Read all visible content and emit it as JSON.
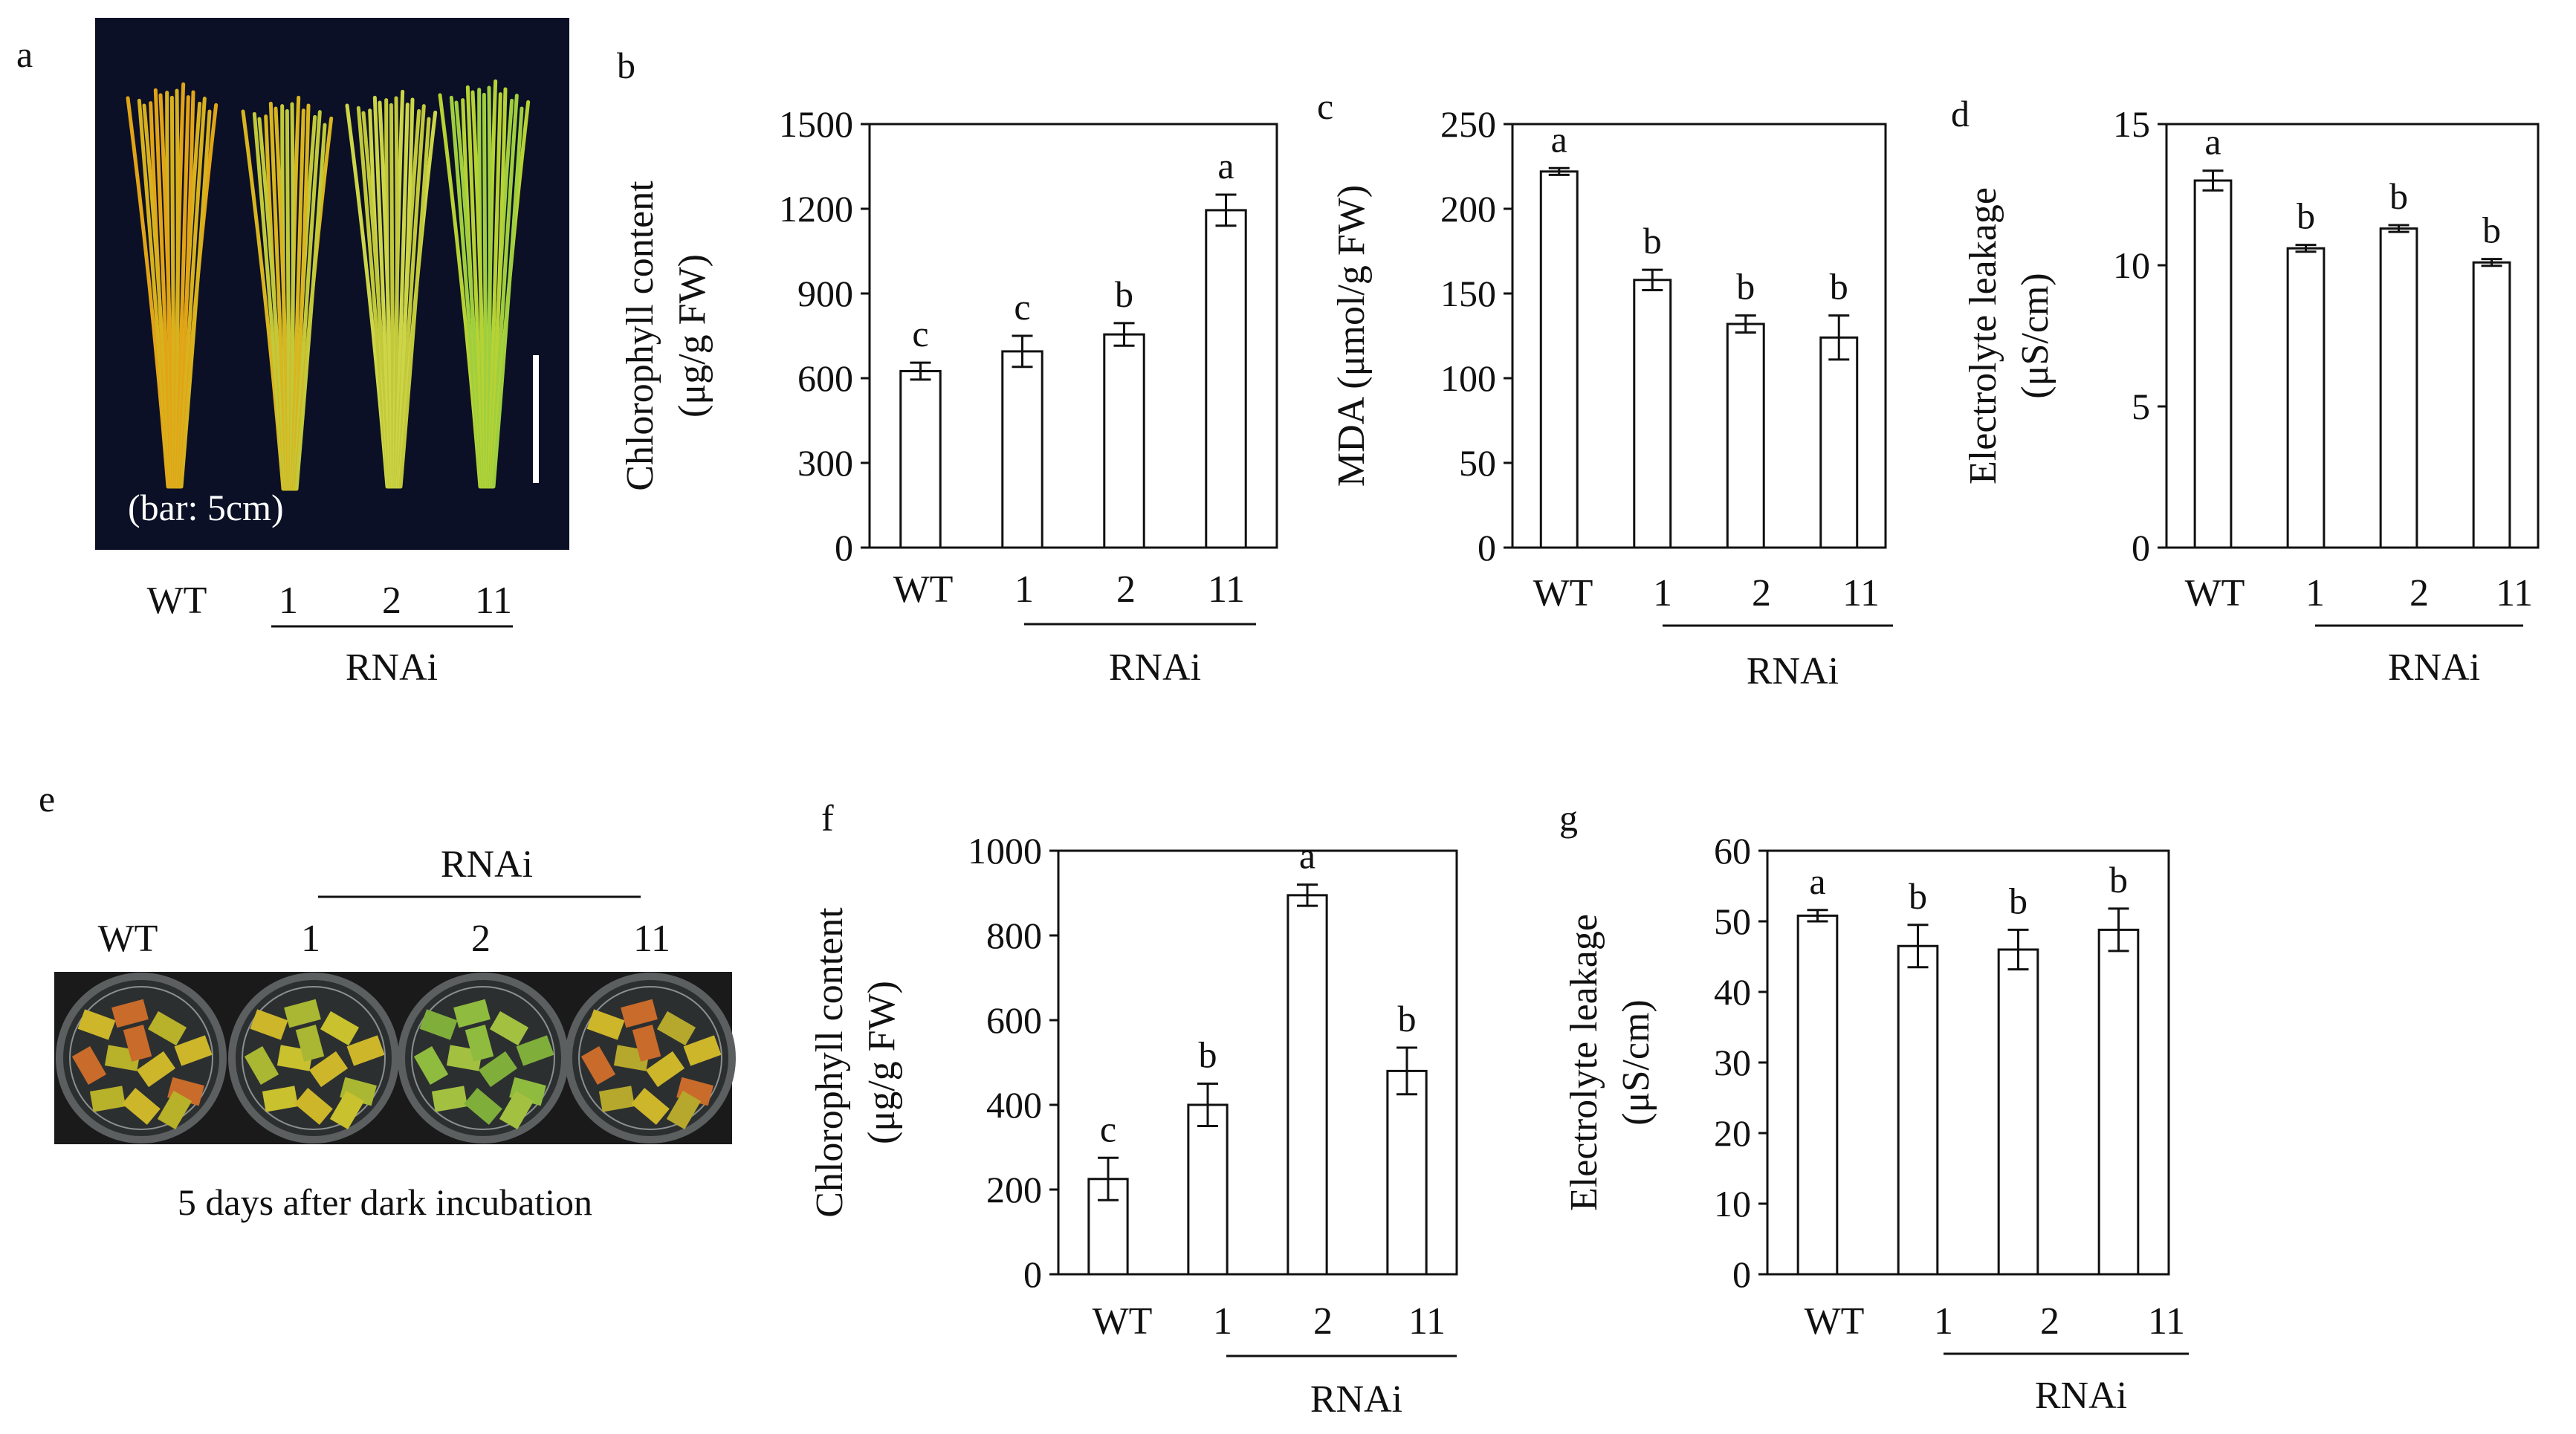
{
  "panel_letters": {
    "a": "a",
    "b": "b",
    "c": "c",
    "d": "d",
    "e": "e",
    "f": "f",
    "g": "g"
  },
  "photo_a": {
    "scale_label": "(bar: 5cm)",
    "labels": [
      "WT",
      "1",
      "2",
      "11"
    ],
    "group_label": "RNAi",
    "colors": {
      "background": "#0b1026",
      "yellow": "#d8b21e",
      "yellow_green": "#c2c93a",
      "green": "#9fcf3e",
      "scale_bar": "#ffffff"
    }
  },
  "photo_e": {
    "labels": [
      "WT",
      "1",
      "2",
      "11"
    ],
    "group_label": "RNAi",
    "caption": "5 days after dark incubation",
    "colors": {
      "background": "#1a1a1a",
      "dish": "#5b5f60",
      "leaf_yellow": "#cdb62a",
      "leaf_orange": "#c96b2a",
      "leaf_green": "#7fae3b"
    }
  },
  "chart_data": [
    {
      "id": "b",
      "type": "bar",
      "categories": [
        "WT",
        "1",
        "2",
        "11"
      ],
      "values": [
        625,
        695,
        755,
        1195
      ],
      "errors": [
        30,
        55,
        40,
        55
      ],
      "letters": [
        "c",
        "c",
        "b",
        "a"
      ],
      "ylabel_line1": "Chlorophyll content",
      "ylabel_line2": "(μg/g FW)",
      "ylim": [
        0,
        1500
      ],
      "yticks": [
        "0",
        "300",
        "600",
        "900",
        "1200",
        "1500"
      ],
      "group_label": "RNAi"
    },
    {
      "id": "c",
      "type": "bar",
      "categories": [
        "WT",
        "1",
        "2",
        "11"
      ],
      "values": [
        222,
        158,
        132,
        124
      ],
      "errors": [
        2,
        6,
        5,
        13
      ],
      "letters": [
        "a",
        "b",
        "b",
        "b"
      ],
      "ylabel_line1": "MDA (μmol/g FW)",
      "ylabel_line2": "",
      "ylim": [
        0,
        250
      ],
      "yticks": [
        "0",
        "50",
        "100",
        "150",
        "200",
        "250"
      ],
      "group_label": "RNAi"
    },
    {
      "id": "d",
      "type": "bar",
      "categories": [
        "WT",
        "1",
        "2",
        "11"
      ],
      "values": [
        13.0,
        10.6,
        11.3,
        10.1
      ],
      "errors": [
        0.35,
        0.12,
        0.12,
        0.12
      ],
      "letters": [
        "a",
        "b",
        "b",
        "b"
      ],
      "ylabel_line1": "Electrolyte leakage",
      "ylabel_line2": "(μS/cm)",
      "ylim": [
        0,
        15
      ],
      "yticks": [
        "0",
        "5",
        "10",
        "15"
      ],
      "group_label": "RNAi"
    },
    {
      "id": "f",
      "type": "bar",
      "categories": [
        "WT",
        "1",
        "2",
        "11"
      ],
      "values": [
        225,
        400,
        895,
        480
      ],
      "errors": [
        50,
        50,
        25,
        55
      ],
      "letters": [
        "c",
        "b",
        "a",
        "b"
      ],
      "ylabel_line1": "Chlorophyll content",
      "ylabel_line2": "(μg/g FW)",
      "ylim": [
        0,
        1000
      ],
      "yticks": [
        "0",
        "200",
        "400",
        "600",
        "800",
        "1000"
      ],
      "group_label": "RNAi"
    },
    {
      "id": "g",
      "type": "bar",
      "categories": [
        "WT",
        "1",
        "2",
        "11"
      ],
      "values": [
        50.8,
        46.5,
        46.0,
        48.8
      ],
      "errors": [
        0.8,
        3.0,
        2.8,
        3.0
      ],
      "letters": [
        "a",
        "b",
        "b",
        "b"
      ],
      "ylabel_line1": "Electrolyte leakage",
      "ylabel_line2": "(μS/cm)",
      "ylim": [
        0,
        60
      ],
      "yticks": [
        "0",
        "10",
        "20",
        "30",
        "40",
        "50",
        "60"
      ],
      "group_label": "RNAi"
    }
  ]
}
